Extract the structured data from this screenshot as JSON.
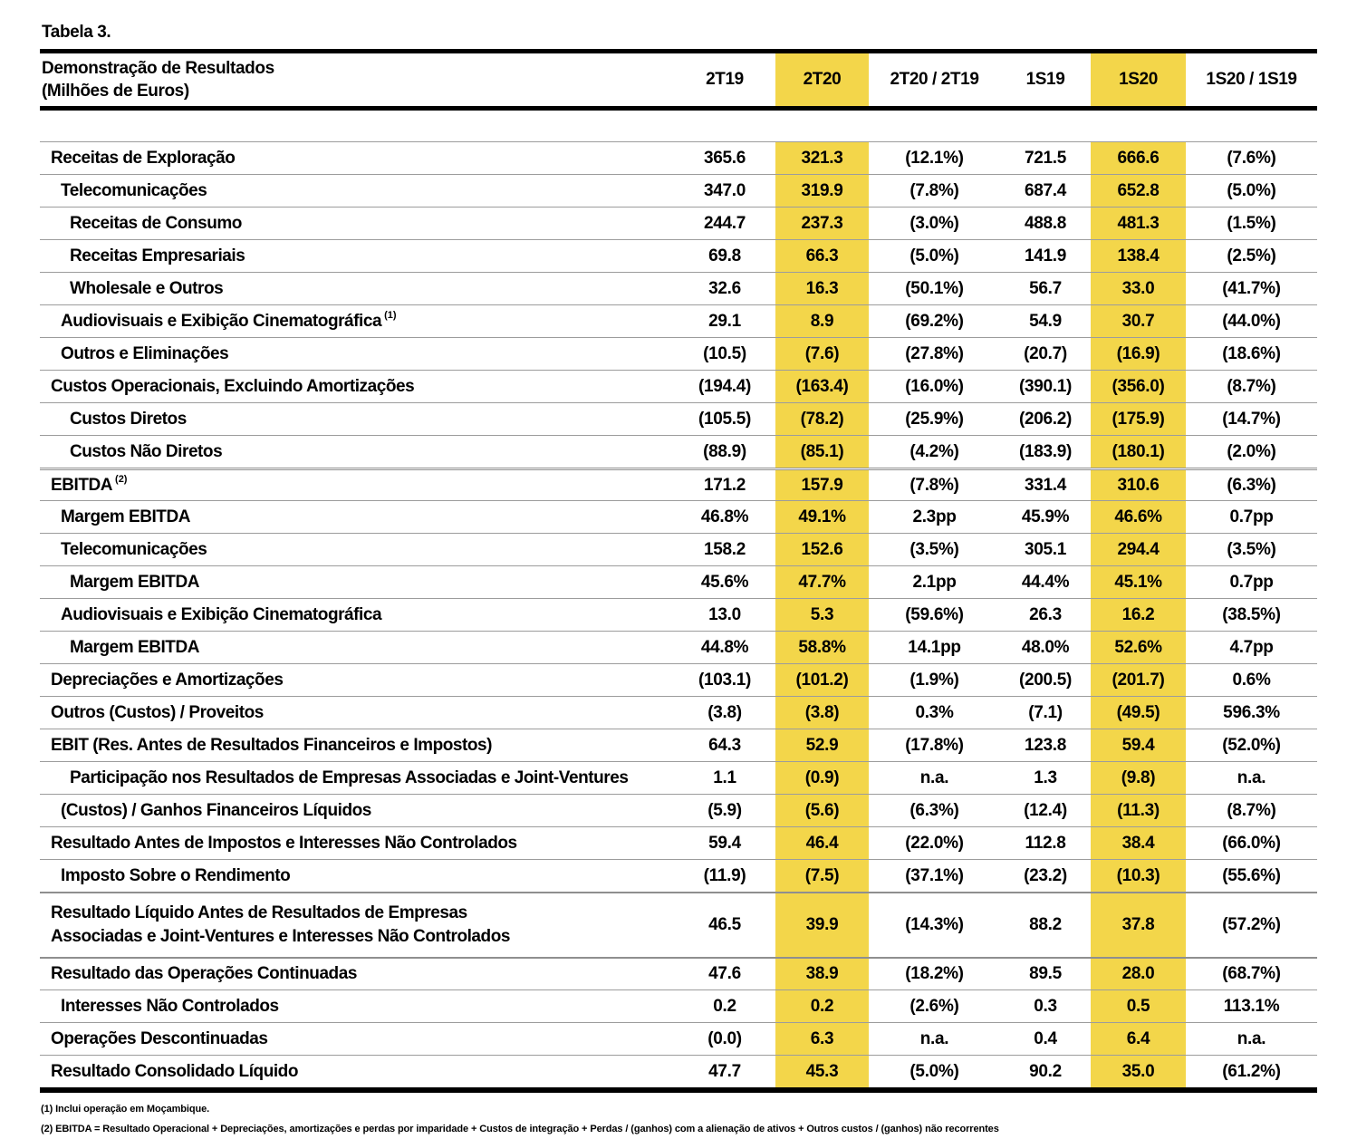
{
  "page": {
    "title": "Tabela 3."
  },
  "colors": {
    "highlight": "#F3D64A",
    "row_line": "#9C9C9C",
    "border": "#000000"
  },
  "table": {
    "header": {
      "label_line1": "Demonstração de Resultados",
      "label_line2": "(Milhões de Euros)",
      "columns": [
        "2T19",
        "2T20",
        "2T20 / 2T19",
        "1S19",
        "1S20",
        "1S20 / 1S19"
      ],
      "highlight_columns": [
        1,
        4
      ]
    },
    "rows": [
      {
        "label": "Receitas de Exploração",
        "indent": 1,
        "values": [
          "365.6",
          "321.3",
          "(12.1%)",
          "721.5",
          "666.6",
          "(7.6%)"
        ]
      },
      {
        "label": "Telecomunicações",
        "indent": 2,
        "values": [
          "347.0",
          "319.9",
          "(7.8%)",
          "687.4",
          "652.8",
          "(5.0%)"
        ]
      },
      {
        "label": "Receitas de Consumo",
        "indent": 3,
        "values": [
          "244.7",
          "237.3",
          "(3.0%)",
          "488.8",
          "481.3",
          "(1.5%)"
        ]
      },
      {
        "label": "Receitas Empresariais",
        "indent": 3,
        "values": [
          "69.8",
          "66.3",
          "(5.0%)",
          "141.9",
          "138.4",
          "(2.5%)"
        ]
      },
      {
        "label": "Wholesale e Outros",
        "indent": 3,
        "values": [
          "32.6",
          "16.3",
          "(50.1%)",
          "56.7",
          "33.0",
          "(41.7%)"
        ]
      },
      {
        "label": "Audiovisuais e Exibição Cinematográfica",
        "sup": "(1)",
        "indent": 2,
        "values": [
          "29.1",
          "8.9",
          "(69.2%)",
          "54.9",
          "30.7",
          "(44.0%)"
        ]
      },
      {
        "label": "Outros e Eliminações",
        "indent": 2,
        "values": [
          "(10.5)",
          "(7.6)",
          "(27.8%)",
          "(20.7)",
          "(16.9)",
          "(18.6%)"
        ]
      },
      {
        "label": "Custos Operacionais, Excluindo Amortizações",
        "indent": 1,
        "values": [
          "(194.4)",
          "(163.4)",
          "(16.0%)",
          "(390.1)",
          "(356.0)",
          "(8.7%)"
        ]
      },
      {
        "label": "Custos Diretos",
        "indent": 3,
        "values": [
          "(105.5)",
          "(78.2)",
          "(25.9%)",
          "(206.2)",
          "(175.9)",
          "(14.7%)"
        ]
      },
      {
        "label": "Custos Não Diretos",
        "indent": 3,
        "values": [
          "(88.9)",
          "(85.1)",
          "(4.2%)",
          "(183.9)",
          "(180.1)",
          "(2.0%)"
        ]
      },
      {
        "label": "EBITDA",
        "sup": "(2)",
        "indent": 1,
        "border": "double",
        "values": [
          "171.2",
          "157.9",
          "(7.8%)",
          "331.4",
          "310.6",
          "(6.3%)"
        ]
      },
      {
        "label": "Margem EBITDA",
        "indent": 2,
        "values": [
          "46.8%",
          "49.1%",
          "2.3pp",
          "45.9%",
          "46.6%",
          "0.7pp"
        ]
      },
      {
        "label": "Telecomunicações",
        "indent": 2,
        "values": [
          "158.2",
          "152.6",
          "(3.5%)",
          "305.1",
          "294.4",
          "(3.5%)"
        ]
      },
      {
        "label": "Margem EBITDA",
        "indent": 3,
        "values": [
          "45.6%",
          "47.7%",
          "2.1pp",
          "44.4%",
          "45.1%",
          "0.7pp"
        ]
      },
      {
        "label": "Audiovisuais e Exibição Cinematográfica",
        "indent": 2,
        "values": [
          "13.0",
          "5.3",
          "(59.6%)",
          "26.3",
          "16.2",
          "(38.5%)"
        ]
      },
      {
        "label": "Margem EBITDA",
        "indent": 3,
        "values": [
          "44.8%",
          "58.8%",
          "14.1pp",
          "48.0%",
          "52.6%",
          "4.7pp"
        ]
      },
      {
        "label": "Depreciações e Amortizações",
        "indent": 1,
        "values": [
          "(103.1)",
          "(101.2)",
          "(1.9%)",
          "(200.5)",
          "(201.7)",
          "0.6%"
        ]
      },
      {
        "label": "Outros (Custos) / Proveitos",
        "indent": 1,
        "values": [
          "(3.8)",
          "(3.8)",
          "0.3%",
          "(7.1)",
          "(49.5)",
          "596.3%"
        ]
      },
      {
        "label": "EBIT (Res. Antes de Resultados Financeiros e Impostos)",
        "indent": 1,
        "values": [
          "64.3",
          "52.9",
          "(17.8%)",
          "123.8",
          "59.4",
          "(52.0%)"
        ]
      },
      {
        "label": "Participação nos Resultados de Empresas Associadas e Joint-Ventures",
        "indent": 3,
        "values": [
          "1.1",
          "(0.9)",
          "n.a.",
          "1.3",
          "(9.8)",
          "n.a."
        ]
      },
      {
        "label": "(Custos) / Ganhos Financeiros Líquidos",
        "indent": 2,
        "values": [
          "(5.9)",
          "(5.6)",
          "(6.3%)",
          "(12.4)",
          "(11.3)",
          "(8.7%)"
        ]
      },
      {
        "label": "Resultado Antes de Impostos e Interesses Não Controlados",
        "indent": 1,
        "values": [
          "59.4",
          "46.4",
          "(22.0%)",
          "112.8",
          "38.4",
          "(66.0%)"
        ]
      },
      {
        "label": "Imposto Sobre o Rendimento",
        "indent": 2,
        "values": [
          "(11.9)",
          "(7.5)",
          "(37.1%)",
          "(23.2)",
          "(10.3)",
          "(55.6%)"
        ]
      },
      {
        "label": "Resultado Líquido Antes de Resultados de Empresas\nAssociadas e Joint-Ventures e Interesses Não Controlados",
        "indent": 1,
        "tall": true,
        "border": "thick",
        "values": [
          "46.5",
          "39.9",
          "(14.3%)",
          "88.2",
          "37.8",
          "(57.2%)"
        ]
      },
      {
        "label": "Resultado das Operações Continuadas",
        "indent": 1,
        "border": "thick",
        "values": [
          "47.6",
          "38.9",
          "(18.2%)",
          "89.5",
          "28.0",
          "(68.7%)"
        ]
      },
      {
        "label": "Interesses Não Controlados",
        "indent": 2,
        "values": [
          "0.2",
          "0.2",
          "(2.6%)",
          "0.3",
          "0.5",
          "113.1%"
        ]
      },
      {
        "label": "Operações Descontinuadas",
        "indent": 1,
        "values": [
          "(0.0)",
          "6.3",
          "n.a.",
          "0.4",
          "6.4",
          "n.a."
        ]
      },
      {
        "label": "Resultado Consolidado Líquido",
        "indent": 1,
        "values": [
          "47.7",
          "45.3",
          "(5.0%)",
          "90.2",
          "35.0",
          "(61.2%)"
        ]
      }
    ],
    "footnotes": [
      "(1) Inclui operação em Moçambique.",
      "(2) EBITDA = Resultado Operacional + Depreciações, amortizações e perdas por imparidade + Custos de integração + Perdas / (ganhos) com a alienação de ativos + Outros custos / (ganhos) não recorrentes"
    ]
  }
}
